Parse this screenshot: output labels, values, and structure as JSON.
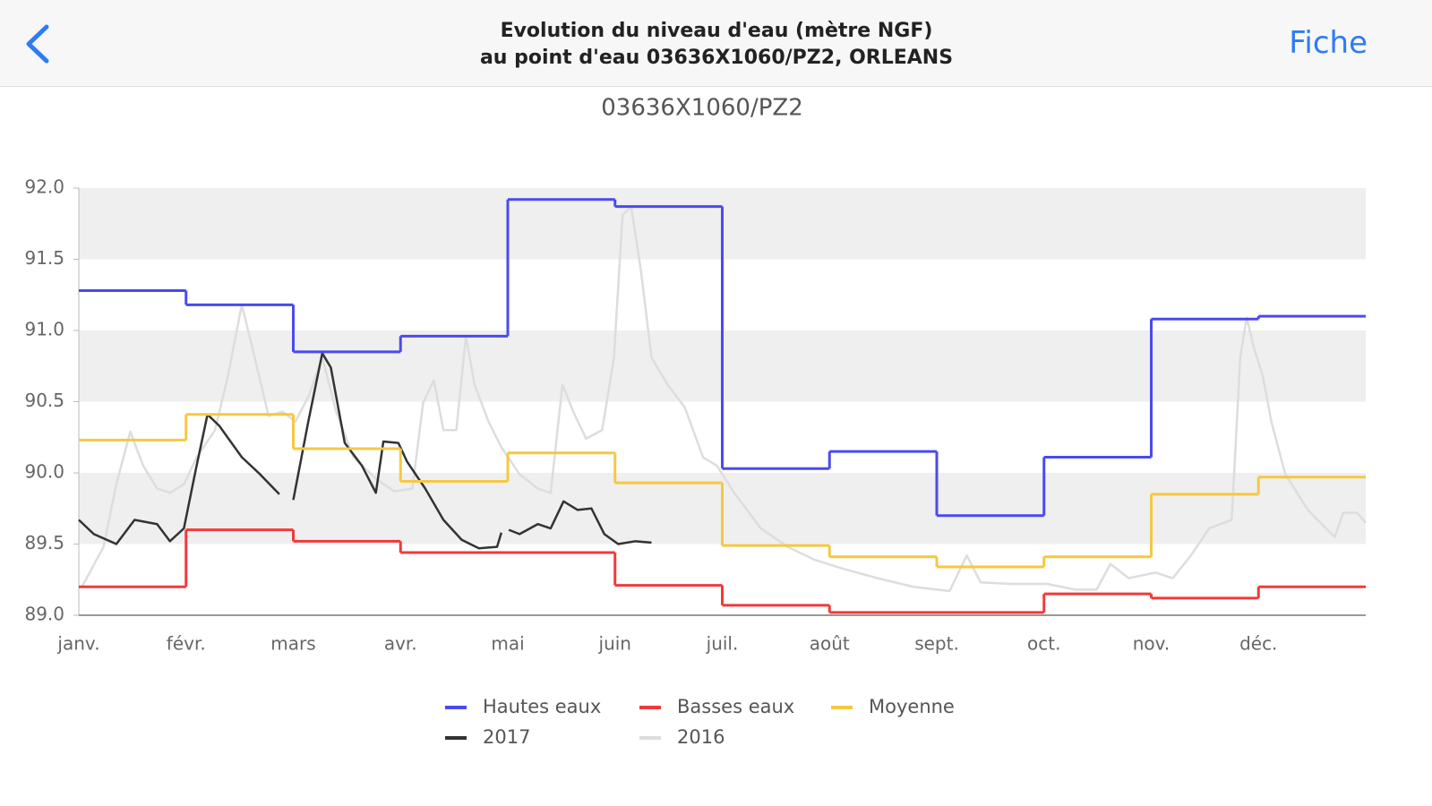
{
  "header": {
    "title_lines": [
      "Evolution du niveau d'eau (mètre NGF)",
      "au point d'eau 03636X1060/PZ2, ORLEANS"
    ],
    "action": "Fiche"
  },
  "chart_data": {
    "type": "line",
    "title": "03636X1060/PZ2",
    "categories": [
      "janv.",
      "févr.",
      "mars",
      "avr.",
      "mai",
      "juin",
      "juil.",
      "août",
      "sept.",
      "oct.",
      "nov.",
      "déc."
    ],
    "xlim": [
      0,
      12
    ],
    "ylim": [
      89,
      92
    ],
    "yticks": [
      {
        "value": 89,
        "label": "89.0"
      },
      89.5,
      {
        "value": 90,
        "label": "90.0"
      },
      90.5,
      {
        "value": 91,
        "label": "91.0"
      },
      91.5,
      {
        "value": 92,
        "label": "92.0"
      }
    ],
    "band_color": "#efefef",
    "series": [
      {
        "name": "Hautes eaux",
        "color": "#4a4af0",
        "style": "step",
        "values": [
          91.28,
          91.18,
          90.85,
          90.96,
          91.92,
          91.87,
          90.03,
          90.15,
          89.7,
          90.11,
          91.08,
          91.1
        ]
      },
      {
        "name": "Basses eaux",
        "color": "#f03a3a",
        "style": "step",
        "values": [
          89.2,
          89.6,
          89.52,
          89.44,
          89.44,
          89.21,
          89.07,
          89.02,
          89.02,
          89.15,
          89.12,
          89.2
        ]
      },
      {
        "name": "Moyenne",
        "color": "#f5c842",
        "style": "step",
        "values": [
          90.23,
          90.41,
          90.17,
          89.94,
          90.14,
          89.93,
          89.49,
          89.41,
          89.34,
          89.41,
          89.85,
          89.97
        ]
      },
      {
        "name": "2017",
        "color": "#333333",
        "style": "line",
        "x": [
          0,
          0.14,
          0.35,
          0.52,
          0.73,
          0.85,
          0.98,
          1.09,
          1.2,
          1.31,
          1.52,
          1.69,
          1.87,
          1.93,
          2.0,
          2.14,
          2.27,
          2.35,
          2.48,
          2.64,
          2.77,
          2.84,
          2.98,
          3.06,
          3.23,
          3.4,
          3.57,
          3.73,
          3.9,
          3.94,
          3.97,
          4.01,
          4.11,
          4.28,
          4.4,
          4.52,
          4.65,
          4.78,
          4.9,
          5.03,
          5.19,
          5.34
        ],
        "values": [
          89.67,
          89.57,
          89.5,
          89.67,
          89.64,
          89.52,
          89.61,
          90.02,
          90.41,
          90.33,
          90.11,
          89.99,
          89.85,
          null,
          89.81,
          90.36,
          90.84,
          90.74,
          90.21,
          90.05,
          89.86,
          90.22,
          90.21,
          90.08,
          89.89,
          89.67,
          89.53,
          89.47,
          89.48,
          89.58,
          null,
          89.6,
          89.57,
          89.64,
          89.61,
          89.8,
          89.74,
          89.75,
          89.57,
          89.5,
          89.52,
          89.51
        ]
      },
      {
        "name": "2016",
        "color": "#dddddd",
        "style": "line",
        "x": [
          0.03,
          0.23,
          0.35,
          0.48,
          0.6,
          0.73,
          0.85,
          0.98,
          1.1,
          1.27,
          1.39,
          1.52,
          1.64,
          1.77,
          1.9,
          2.02,
          2.15,
          2.27,
          2.4,
          2.56,
          2.77,
          2.94,
          3.11,
          3.21,
          3.31,
          3.4,
          3.52,
          3.61,
          3.69,
          3.82,
          3.94,
          4.11,
          4.28,
          4.4,
          4.51,
          4.61,
          4.73,
          4.88,
          4.99,
          5.07,
          5.15,
          5.24,
          5.34,
          5.49,
          5.65,
          5.82,
          5.95,
          6.11,
          6.36,
          6.61,
          6.86,
          7.11,
          7.45,
          7.78,
          8.12,
          8.28,
          8.41,
          8.7,
          9.03,
          9.29,
          9.49,
          9.62,
          9.79,
          10.04,
          10.2,
          10.37,
          10.54,
          10.75,
          10.83,
          10.89,
          10.96,
          11.04,
          11.12,
          11.25,
          11.46,
          11.71,
          11.79,
          11.92,
          12.0
        ],
        "values": [
          89.2,
          89.48,
          89.92,
          90.29,
          90.05,
          89.89,
          89.86,
          89.92,
          90.11,
          90.3,
          90.68,
          91.18,
          90.81,
          90.4,
          90.43,
          90.36,
          90.55,
          90.81,
          90.43,
          90.11,
          89.96,
          89.87,
          89.89,
          90.49,
          90.65,
          90.3,
          90.3,
          90.96,
          90.62,
          90.36,
          90.18,
          89.99,
          89.89,
          89.86,
          90.62,
          90.43,
          90.24,
          90.3,
          90.81,
          91.81,
          91.87,
          91.43,
          90.81,
          90.62,
          90.46,
          90.11,
          90.05,
          89.86,
          89.61,
          89.48,
          89.39,
          89.33,
          89.26,
          89.2,
          89.17,
          89.42,
          89.23,
          89.22,
          89.22,
          89.18,
          89.18,
          89.36,
          89.26,
          89.3,
          89.26,
          89.42,
          89.61,
          89.67,
          90.81,
          91.09,
          90.87,
          90.68,
          90.36,
          89.99,
          89.74,
          89.55,
          89.72,
          89.72,
          89.65
        ]
      }
    ]
  }
}
